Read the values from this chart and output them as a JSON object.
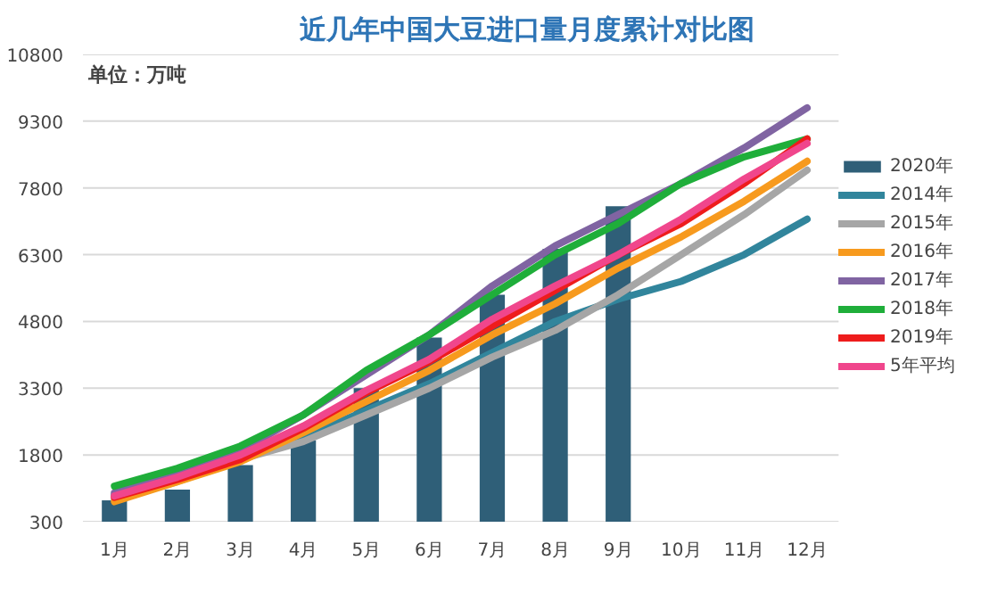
{
  "chart_data": {
    "type": "line",
    "title": "近几年中国大豆进口量月度累计对比图",
    "annotations": [
      "单位：万吨"
    ],
    "categories": [
      "1月",
      "2月",
      "3月",
      "4月",
      "5月",
      "6月",
      "7月",
      "8月",
      "9月",
      "10月",
      "11月",
      "12月"
    ],
    "series": [
      {
        "name": "2020年",
        "type": "bar",
        "color": "#2f5f78",
        "values": [
          780,
          1020,
          1570,
          2130,
          3300,
          4440,
          5400,
          6430,
          7390,
          null,
          null,
          null
        ]
      },
      {
        "name": "2014年",
        "color": "#31859c",
        "values": [
          900,
          1300,
          1700,
          2200,
          2800,
          3400,
          4100,
          4800,
          5300,
          5700,
          6300,
          7100
        ]
      },
      {
        "name": "2015年",
        "color": "#a6a6a6",
        "values": [
          800,
          1200,
          1700,
          2100,
          2700,
          3300,
          4000,
          4600,
          5400,
          6300,
          7200,
          8200
        ]
      },
      {
        "name": "2016年",
        "color": "#f79a1e",
        "values": [
          750,
          1200,
          1650,
          2300,
          3000,
          3700,
          4500,
          5200,
          6000,
          6700,
          7500,
          8400
        ]
      },
      {
        "name": "2017年",
        "color": "#8064a2",
        "values": [
          950,
          1400,
          1900,
          2700,
          3600,
          4500,
          5600,
          6500,
          7200,
          7900,
          8700,
          9600
        ]
      },
      {
        "name": "2018年",
        "color": "#1fae3a",
        "values": [
          1100,
          1500,
          2000,
          2700,
          3700,
          4500,
          5400,
          6300,
          7000,
          7900,
          8500,
          8900
        ]
      },
      {
        "name": "2019年",
        "color": "#ee1c1c",
        "values": [
          850,
          1250,
          1700,
          2400,
          3200,
          3900,
          4700,
          5500,
          6300,
          7000,
          7900,
          8900
        ]
      },
      {
        "name": "5年平均",
        "color": "#f0468c",
        "values": [
          880,
          1300,
          1800,
          2450,
          3250,
          3950,
          4850,
          5600,
          6300,
          7100,
          8000,
          8800
        ]
      }
    ],
    "ylim": [
      300,
      10800
    ],
    "yticks": [
      300,
      1800,
      3300,
      4800,
      6300,
      7800,
      9300,
      10800
    ],
    "grid": "y",
    "legend": "right"
  }
}
